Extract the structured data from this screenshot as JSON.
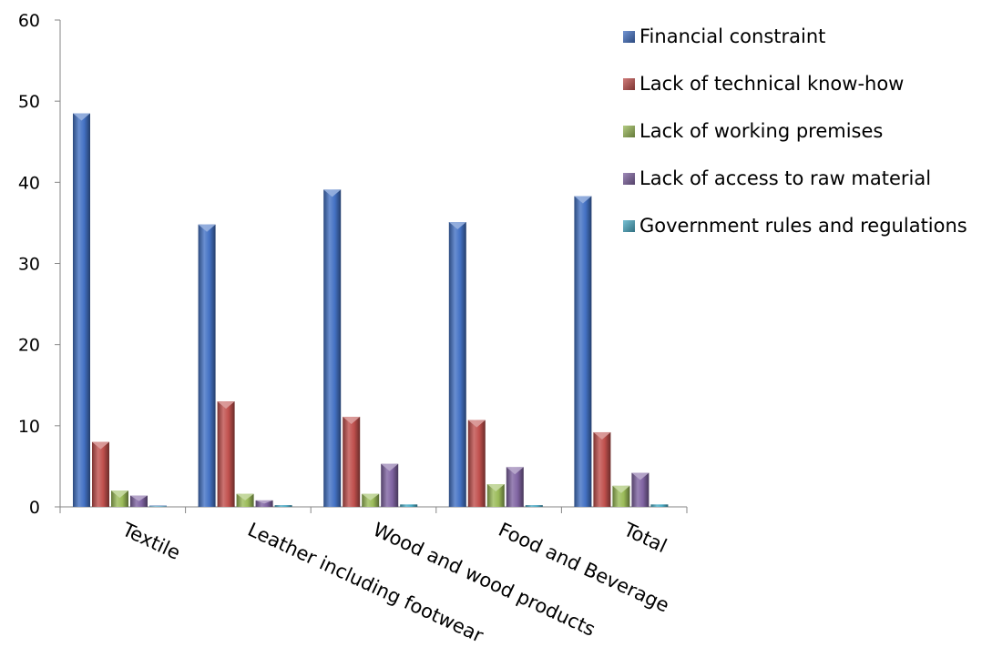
{
  "chart_data": {
    "type": "bar",
    "categories": [
      "Textile",
      "Leather including footwear",
      "Wood and wood products",
      "Food and Beverage",
      "Total"
    ],
    "series": [
      {
        "name": "Financial constraint",
        "values": [
          48.5,
          34.8,
          39.1,
          35.1,
          38.3
        ],
        "color": "#4472C4"
      },
      {
        "name": "Lack of technical know-how",
        "values": [
          8.0,
          13.0,
          11.1,
          10.7,
          9.2
        ],
        "color": "#C0504D"
      },
      {
        "name": "Lack of working premises",
        "values": [
          2.0,
          1.6,
          1.6,
          2.8,
          2.6
        ],
        "color": "#9BBB59"
      },
      {
        "name": "Lack of access to raw material",
        "values": [
          1.4,
          0.8,
          5.3,
          4.9,
          4.2
        ],
        "color": "#8064A2"
      },
      {
        "name": "Government rules and regulations",
        "values": [
          0.0,
          0.2,
          0.3,
          0.2,
          0.3
        ],
        "color": "#4BACC6"
      }
    ],
    "ylim": [
      0,
      60
    ],
    "yticks": [
      0,
      10,
      20,
      30,
      40,
      50,
      60
    ],
    "grid": false,
    "legend_position": "right"
  }
}
